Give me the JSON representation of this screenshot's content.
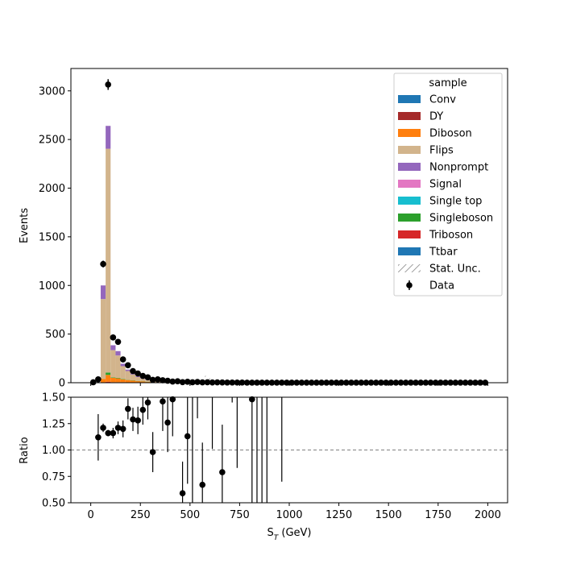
{
  "chart_data": {
    "type": "bar",
    "stacked": true,
    "xlabel": "S$_T$ (GeV)",
    "xlabel_main": "S",
    "xlabel_sub": "T",
    "xlabel_tail": " (GeV)",
    "xlim": [
      -100,
      2100
    ],
    "main": {
      "ylabel": "Events",
      "ylim": [
        0,
        3230
      ],
      "yticks": [
        0,
        500,
        1000,
        1500,
        2000,
        2500,
        3000
      ],
      "bin_width": 25,
      "stack_order_bottom_to_top": [
        "Triboson",
        "Diboson",
        "DY",
        "Conv",
        "Ttbar",
        "Single top",
        "Singleboson",
        "Signal",
        "Flips",
        "Nonprompt"
      ],
      "stack_bins": [
        {
          "lo": 50,
          "hi": 75,
          "Triboson": 0,
          "Diboson": 40,
          "DY": 0,
          "Conv": 0,
          "Ttbar": 0,
          "Single top": 0,
          "Singleboson": 0,
          "Signal": 0,
          "Flips": 820,
          "Nonprompt": 140
        },
        {
          "lo": 75,
          "hi": 100,
          "Triboson": 10,
          "Diboson": 70,
          "DY": 0,
          "Conv": 0,
          "Ttbar": 0,
          "Single top": 0,
          "Singleboson": 25,
          "Signal": 0,
          "Flips": 2300,
          "Nonprompt": 235
        },
        {
          "lo": 100,
          "hi": 125,
          "Triboson": 5,
          "Diboson": 45,
          "DY": 0,
          "Conv": 0,
          "Ttbar": 0,
          "Single top": 0,
          "Singleboson": 5,
          "Signal": 0,
          "Flips": 280,
          "Nonprompt": 50
        },
        {
          "lo": 125,
          "hi": 150,
          "Triboson": 5,
          "Diboson": 40,
          "DY": 0,
          "Conv": 0,
          "Ttbar": 0,
          "Single top": 0,
          "Singleboson": 5,
          "Signal": 0,
          "Flips": 230,
          "Nonprompt": 45
        },
        {
          "lo": 150,
          "hi": 175,
          "Triboson": 5,
          "Diboson": 30,
          "DY": 0,
          "Conv": 0,
          "Ttbar": 0,
          "Single top": 0,
          "Singleboson": 5,
          "Signal": 0,
          "Flips": 130,
          "Nonprompt": 25
        },
        {
          "lo": 175,
          "hi": 200,
          "Triboson": 3,
          "Diboson": 25,
          "DY": 0,
          "Conv": 0,
          "Ttbar": 0,
          "Single top": 0,
          "Singleboson": 2,
          "Signal": 0,
          "Flips": 90,
          "Nonprompt": 15
        },
        {
          "lo": 200,
          "hi": 225,
          "Triboson": 3,
          "Diboson": 20,
          "DY": 0,
          "Conv": 0,
          "Ttbar": 0,
          "Single top": 0,
          "Singleboson": 2,
          "Signal": 0,
          "Flips": 60,
          "Nonprompt": 10
        },
        {
          "lo": 225,
          "hi": 250,
          "Triboson": 2,
          "Diboson": 15,
          "DY": 0,
          "Conv": 0,
          "Ttbar": 0,
          "Single top": 0,
          "Singleboson": 1,
          "Signal": 0,
          "Flips": 40,
          "Nonprompt": 7
        },
        {
          "lo": 250,
          "hi": 275,
          "Triboson": 2,
          "Diboson": 12,
          "DY": 0,
          "Conv": 0,
          "Ttbar": 0,
          "Single top": 0,
          "Singleboson": 1,
          "Signal": 0,
          "Flips": 25,
          "Nonprompt": 5
        },
        {
          "lo": 275,
          "hi": 300,
          "Triboson": 1,
          "Diboson": 8,
          "DY": 0,
          "Conv": 0,
          "Ttbar": 0,
          "Single top": 0,
          "Singleboson": 1,
          "Signal": 0,
          "Flips": 15,
          "Nonprompt": 3
        },
        {
          "lo": 300,
          "hi": 325,
          "Triboson": 1,
          "Diboson": 6,
          "DY": 0,
          "Conv": 0,
          "Ttbar": 0,
          "Single top": 0,
          "Singleboson": 0,
          "Signal": 0,
          "Flips": 10,
          "Nonprompt": 2
        },
        {
          "lo": 325,
          "hi": 350,
          "Triboson": 1,
          "Diboson": 5,
          "DY": 0,
          "Conv": 0,
          "Ttbar": 0,
          "Single top": 0,
          "Singleboson": 0,
          "Signal": 0,
          "Flips": 8,
          "Nonprompt": 2
        },
        {
          "lo": 350,
          "hi": 375,
          "Triboson": 1,
          "Diboson": 4,
          "DY": 0,
          "Conv": 0,
          "Ttbar": 0,
          "Single top": 0,
          "Singleboson": 0,
          "Signal": 0,
          "Flips": 6,
          "Nonprompt": 1
        },
        {
          "lo": 375,
          "hi": 400,
          "Triboson": 0,
          "Diboson": 3,
          "DY": 0,
          "Conv": 0,
          "Ttbar": 0,
          "Single top": 0,
          "Singleboson": 0,
          "Signal": 0,
          "Flips": 4,
          "Nonprompt": 1
        },
        {
          "lo": 400,
          "hi": 425,
          "Triboson": 0,
          "Diboson": 2,
          "DY": 0,
          "Conv": 0,
          "Ttbar": 0,
          "Single top": 0,
          "Singleboson": 0,
          "Signal": 0,
          "Flips": 3,
          "Nonprompt": 1
        },
        {
          "lo": 425,
          "hi": 450,
          "Triboson": 0,
          "Diboson": 2,
          "DY": 0,
          "Conv": 0,
          "Ttbar": 0,
          "Single top": 0,
          "Singleboson": 0,
          "Signal": 0,
          "Flips": 2,
          "Nonprompt": 0
        },
        {
          "lo": 450,
          "hi": 475,
          "Triboson": 0,
          "Diboson": 2,
          "DY": 0,
          "Conv": 0,
          "Ttbar": 0,
          "Single top": 0,
          "Singleboson": 0,
          "Signal": 0,
          "Flips": 2,
          "Nonprompt": 0
        },
        {
          "lo": 475,
          "hi": 500,
          "Triboson": 0,
          "Diboson": 1,
          "DY": 0,
          "Conv": 0,
          "Ttbar": 0,
          "Single top": 0,
          "Singleboson": 0,
          "Signal": 0,
          "Flips": 1,
          "Nonprompt": 0
        },
        {
          "lo": 500,
          "hi": 525,
          "Triboson": 0,
          "Diboson": 1,
          "DY": 0,
          "Conv": 0,
          "Ttbar": 0,
          "Single top": 0,
          "Singleboson": 0,
          "Signal": 0,
          "Flips": 1,
          "Nonprompt": 0
        },
        {
          "lo": 525,
          "hi": 550,
          "Triboson": 0,
          "Diboson": 1,
          "DY": 0,
          "Conv": 0,
          "Ttbar": 0,
          "Single top": 0,
          "Singleboson": 0,
          "Signal": 0,
          "Flips": 1,
          "Nonprompt": 0
        }
      ],
      "stat_unc_bins": [
        {
          "lo": 575,
          "hi": 600,
          "down": 0,
          "up": 70
        }
      ],
      "data_points": {
        "x": [
          12.5,
          37.5,
          62.5,
          87.5,
          112.5,
          137.5,
          162.5,
          187.5,
          212.5,
          237.5,
          262.5,
          287.5,
          312.5,
          337.5,
          362.5,
          387.5,
          412.5,
          437.5,
          462.5,
          487.5,
          512.5,
          537.5,
          562.5,
          587.5,
          612.5,
          637.5,
          662.5,
          687.5,
          712.5,
          737.5,
          762.5,
          787.5,
          812.5,
          837.5,
          862.5,
          887.5,
          912.5,
          937.5,
          962.5,
          987.5,
          1012.5,
          1037.5,
          1062.5,
          1087.5,
          1112.5,
          1137.5,
          1162.5,
          1187.5,
          1212.5,
          1237.5,
          1262.5,
          1287.5,
          1312.5,
          1337.5,
          1362.5,
          1387.5,
          1412.5,
          1437.5,
          1462.5,
          1487.5,
          1512.5,
          1537.5,
          1562.5,
          1587.5,
          1612.5,
          1637.5,
          1662.5,
          1687.5,
          1712.5,
          1737.5,
          1762.5,
          1787.5,
          1812.5,
          1837.5,
          1862.5,
          1887.5,
          1912.5,
          1937.5,
          1962.5,
          1987.5
        ],
        "y": [
          5,
          35,
          1220,
          3065,
          465,
          420,
          240,
          180,
          120,
          95,
          70,
          55,
          30,
          35,
          25,
          20,
          12,
          15,
          6,
          10,
          5,
          8,
          4,
          5,
          3,
          4,
          3,
          2,
          2,
          2,
          2,
          1,
          1,
          1,
          1,
          1,
          1,
          1,
          1,
          1,
          1,
          1,
          1,
          1,
          1,
          1,
          1,
          1,
          1,
          1,
          1,
          1,
          1,
          1,
          1,
          1,
          1,
          1,
          1,
          1,
          1,
          1,
          1,
          1,
          1,
          1,
          1,
          1,
          1,
          1,
          1,
          1,
          1,
          1,
          1,
          1,
          1,
          1,
          1,
          1
        ],
        "yerr": [
          2,
          6,
          35,
          55,
          22,
          20,
          15,
          13,
          11,
          10,
          8,
          7,
          5,
          6,
          5,
          4,
          3,
          4,
          2,
          3,
          2,
          3,
          2,
          2,
          2,
          2,
          2,
          1,
          1,
          1,
          1,
          1,
          1,
          1,
          1,
          1,
          1,
          1,
          1,
          1,
          1,
          1,
          1,
          1,
          1,
          1,
          1,
          1,
          1,
          1,
          1,
          1,
          1,
          1,
          1,
          1,
          1,
          1,
          1,
          1,
          1,
          1,
          1,
          1,
          1,
          1,
          1,
          1,
          1,
          1,
          1,
          1,
          1,
          1,
          1,
          1,
          1,
          1,
          1,
          1
        ]
      },
      "legend": {
        "title": "sample",
        "placement": "top-right",
        "entries": [
          {
            "label": "Conv",
            "color": "#1f77b4",
            "kind": "patch"
          },
          {
            "label": "DY",
            "color": "#a52a2a",
            "kind": "patch"
          },
          {
            "label": "Diboson",
            "color": "#ff7f0e",
            "kind": "patch"
          },
          {
            "label": "Flips",
            "color": "#d2b48c",
            "kind": "patch"
          },
          {
            "label": "Nonprompt",
            "color": "#9467bd",
            "kind": "patch"
          },
          {
            "label": "Signal",
            "color": "#e377c2",
            "kind": "patch"
          },
          {
            "label": "Single top",
            "color": "#17becf",
            "kind": "patch"
          },
          {
            "label": "Singleboson",
            "color": "#2ca02c",
            "kind": "patch"
          },
          {
            "label": "Triboson",
            "color": "#d62728",
            "kind": "patch"
          },
          {
            "label": "Ttbar",
            "color": "#1f77b4",
            "kind": "patch"
          },
          {
            "label": "Stat. Unc.",
            "color": "#808080",
            "kind": "hatch"
          },
          {
            "label": "Data",
            "color": "#000000",
            "kind": "errorbar"
          }
        ]
      }
    },
    "ratio": {
      "ylabel": "Ratio",
      "ylim": [
        0.5,
        1.5
      ],
      "yticks": [
        0.5,
        0.75,
        1.0,
        1.25,
        1.5
      ],
      "ytick_labels": [
        "0.50",
        "0.75",
        "1.00",
        "1.25",
        "1.50"
      ],
      "reference_line": 1.0,
      "points": [
        {
          "x": 37.5,
          "y": 1.12,
          "err": 0.22
        },
        {
          "x": 62.5,
          "y": 1.21,
          "err": 0.04
        },
        {
          "x": 87.5,
          "y": 1.16,
          "err": 0.03
        },
        {
          "x": 112.5,
          "y": 1.16,
          "err": 0.05
        },
        {
          "x": 137.5,
          "y": 1.21,
          "err": 0.06
        },
        {
          "x": 162.5,
          "y": 1.2,
          "err": 0.08
        },
        {
          "x": 187.5,
          "y": 1.39,
          "err": 0.1
        },
        {
          "x": 212.5,
          "y": 1.29,
          "err": 0.11
        },
        {
          "x": 237.5,
          "y": 1.28,
          "err": 0.13
        },
        {
          "x": 262.5,
          "y": 1.38,
          "err": 0.14
        },
        {
          "x": 287.5,
          "y": 1.45,
          "err": 0.16
        },
        {
          "x": 312.5,
          "y": 0.98,
          "err": 0.19
        },
        {
          "x": 362.5,
          "y": 1.46,
          "err": 0.28
        },
        {
          "x": 387.5,
          "y": 1.26,
          "err": 0.28
        },
        {
          "x": 412.5,
          "y": 1.48,
          "err": 0.35
        },
        {
          "x": 462.5,
          "y": 0.59,
          "err": 0.3
        },
        {
          "x": 487.5,
          "y": 1.13,
          "err": 0.45
        },
        {
          "x": 562.5,
          "y": 0.67,
          "err": 0.4
        },
        {
          "x": 662.5,
          "y": 0.79,
          "err": 0.45
        },
        {
          "x": 812.5,
          "y": 1.48,
          "err": 1.0
        }
      ],
      "bars_only": [
        {
          "x": 512.5,
          "lo": 0.5,
          "hi": 1.5
        },
        {
          "x": 537.5,
          "lo": 1.3,
          "hi": 1.5
        },
        {
          "x": 612.5,
          "lo": 1.01,
          "hi": 1.5
        },
        {
          "x": 712.5,
          "lo": 1.45,
          "hi": 1.5
        },
        {
          "x": 737.5,
          "lo": 0.83,
          "hi": 1.5
        },
        {
          "x": 837.5,
          "lo": 0.5,
          "hi": 1.5
        },
        {
          "x": 862.5,
          "lo": 0.5,
          "hi": 1.5
        },
        {
          "x": 887.5,
          "lo": 0.5,
          "hi": 1.5
        },
        {
          "x": 962.5,
          "lo": 0.7,
          "hi": 1.5
        }
      ]
    },
    "xticks": [
      0,
      250,
      500,
      750,
      1000,
      1250,
      1500,
      1750,
      2000
    ],
    "grid": false
  }
}
